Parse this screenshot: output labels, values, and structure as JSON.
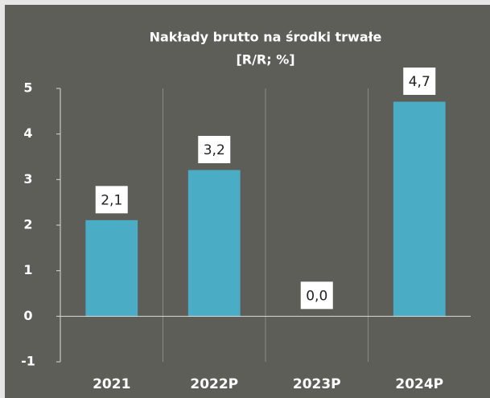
{
  "chart_data": {
    "type": "bar",
    "title": "Nakłady brutto na środki trwałe",
    "subtitle": "[R/R; %]",
    "categories": [
      "2021",
      "2022P",
      "2023P",
      "2024P"
    ],
    "values": [
      2.1,
      3.2,
      0.0,
      4.7
    ],
    "value_labels": [
      "2,1",
      "3,2",
      "0,0",
      "4,7"
    ],
    "color": "#4bacc6",
    "ylim": [
      -1,
      5
    ],
    "yticks": [
      -1,
      0,
      1,
      2,
      3,
      4,
      5
    ]
  }
}
